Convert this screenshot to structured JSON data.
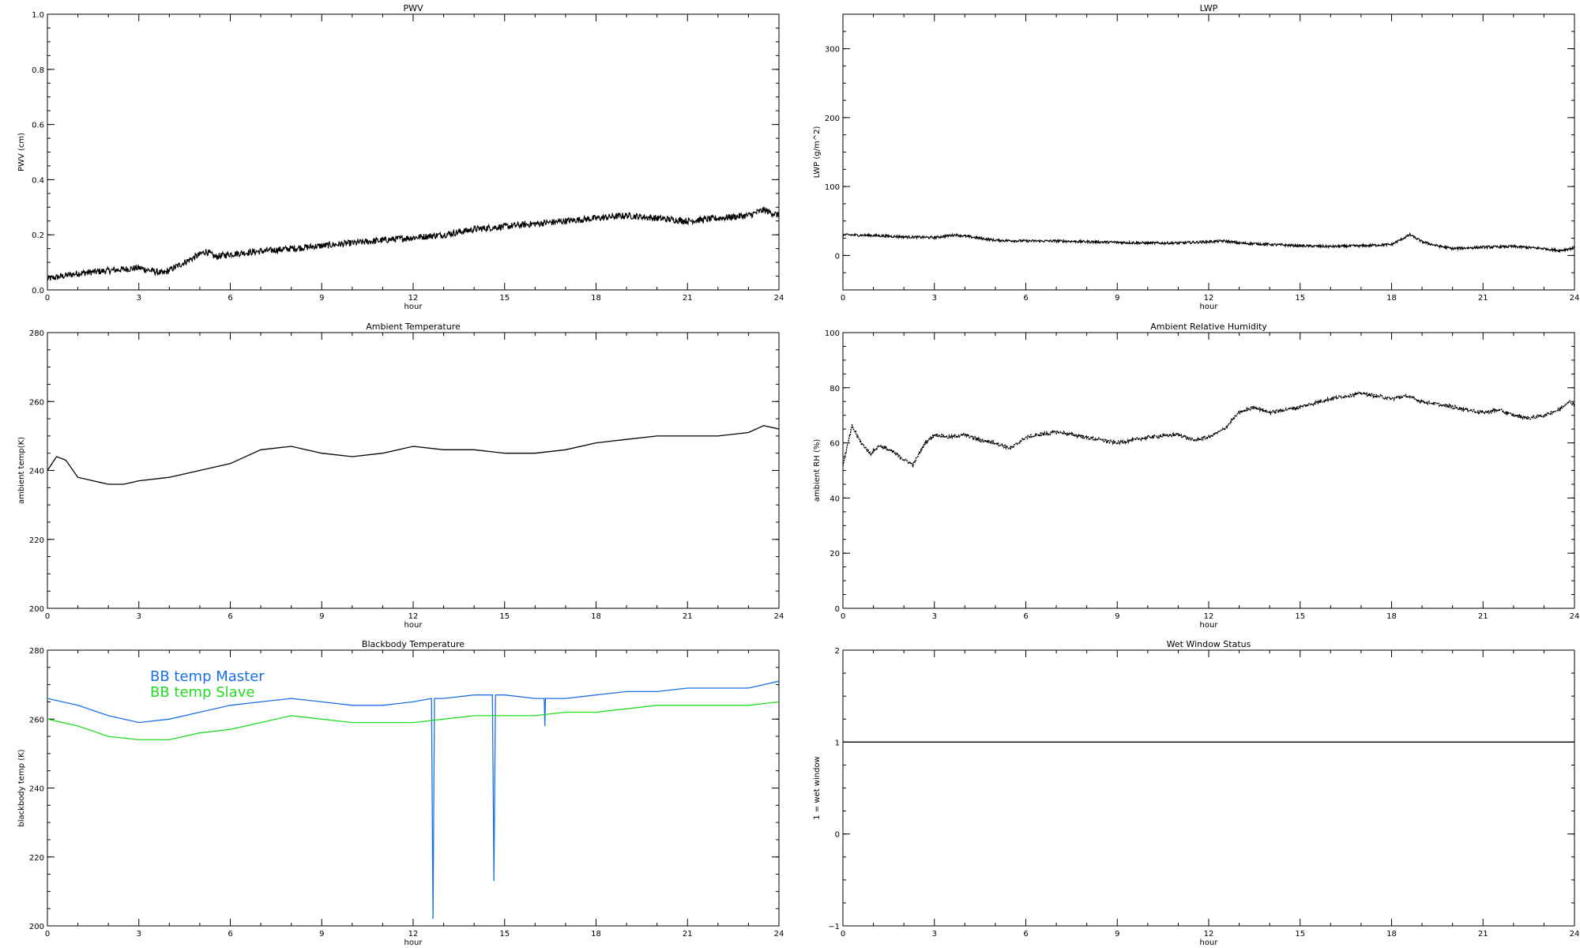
{
  "chart_data": [
    {
      "type": "line",
      "title": "PWV",
      "xlabel": "hour",
      "ylabel": "PWV (cm)",
      "xlim": [
        0,
        24
      ],
      "ylim": [
        0.0,
        1.0
      ],
      "xticks": [
        0,
        3,
        6,
        9,
        12,
        15,
        18,
        21,
        24
      ],
      "yticks": [
        0.0,
        0.2,
        0.4,
        0.6,
        0.8,
        1.0
      ],
      "ytick_labels": [
        "0.0",
        "0.2",
        "0.4",
        "0.6",
        "0.8",
        "1.0"
      ],
      "series": [
        {
          "color": "#000000",
          "noise": 0.012,
          "points": [
            [
              0,
              0.04
            ],
            [
              1,
              0.06
            ],
            [
              2,
              0.07
            ],
            [
              3,
              0.08
            ],
            [
              3.8,
              0.06
            ],
            [
              4.5,
              0.1
            ],
            [
              5.2,
              0.14
            ],
            [
              5.5,
              0.12
            ],
            [
              6,
              0.13
            ],
            [
              7,
              0.14
            ],
            [
              8,
              0.15
            ],
            [
              9,
              0.16
            ],
            [
              10,
              0.17
            ],
            [
              11,
              0.18
            ],
            [
              12,
              0.19
            ],
            [
              13,
              0.2
            ],
            [
              14,
              0.22
            ],
            [
              15,
              0.23
            ],
            [
              16,
              0.24
            ],
            [
              17,
              0.25
            ],
            [
              18,
              0.26
            ],
            [
              19,
              0.27
            ],
            [
              20,
              0.26
            ],
            [
              21,
              0.25
            ],
            [
              22,
              0.26
            ],
            [
              23,
              0.27
            ],
            [
              23.5,
              0.29
            ],
            [
              24,
              0.27
            ]
          ]
        }
      ]
    },
    {
      "type": "line",
      "title": "LWP",
      "xlabel": "hour",
      "ylabel": "LWP (g/m^2)",
      "xlim": [
        0,
        24
      ],
      "ylim": [
        -50,
        350
      ],
      "xticks": [
        0,
        3,
        6,
        9,
        12,
        15,
        18,
        21,
        24
      ],
      "yticks": [
        0,
        100,
        200,
        300
      ],
      "ytick_labels": [
        "0",
        "100",
        "200",
        "300"
      ],
      "series": [
        {
          "color": "#000000",
          "noise": 1.8,
          "points": [
            [
              0,
              30
            ],
            [
              1,
              29
            ],
            [
              2,
              27
            ],
            [
              3,
              26
            ],
            [
              3.7,
              30
            ],
            [
              4.5,
              25
            ],
            [
              5,
              22
            ],
            [
              6,
              21
            ],
            [
              7,
              21
            ],
            [
              8,
              20
            ],
            [
              9,
              19
            ],
            [
              10,
              18
            ],
            [
              11,
              18
            ],
            [
              12,
              20
            ],
            [
              12.5,
              21
            ],
            [
              13,
              18
            ],
            [
              14,
              16
            ],
            [
              15,
              14
            ],
            [
              16,
              13
            ],
            [
              17,
              14
            ],
            [
              18,
              16
            ],
            [
              18.6,
              30
            ],
            [
              19,
              20
            ],
            [
              19.5,
              14
            ],
            [
              20,
              10
            ],
            [
              21,
              12
            ],
            [
              22,
              13
            ],
            [
              23,
              10
            ],
            [
              23.5,
              7
            ],
            [
              24,
              11
            ]
          ]
        }
      ]
    },
    {
      "type": "line",
      "title": "Ambient Temperature",
      "xlabel": "hour",
      "ylabel": "ambient temp(K)",
      "xlim": [
        0,
        24
      ],
      "ylim": [
        200,
        280
      ],
      "xticks": [
        0,
        3,
        6,
        9,
        12,
        15,
        18,
        21,
        24
      ],
      "yticks": [
        200,
        220,
        240,
        260,
        280
      ],
      "ytick_labels": [
        "200",
        "220",
        "240",
        "260",
        "280"
      ],
      "series": [
        {
          "color": "#000000",
          "noise": 0,
          "points": [
            [
              0,
              240
            ],
            [
              0.3,
              244
            ],
            [
              0.6,
              243
            ],
            [
              1,
              238
            ],
            [
              1.5,
              237
            ],
            [
              2,
              236
            ],
            [
              2.5,
              236
            ],
            [
              3,
              237
            ],
            [
              4,
              238
            ],
            [
              5,
              240
            ],
            [
              6,
              242
            ],
            [
              7,
              246
            ],
            [
              8,
              247
            ],
            [
              9,
              245
            ],
            [
              10,
              244
            ],
            [
              11,
              245
            ],
            [
              12,
              247
            ],
            [
              13,
              246
            ],
            [
              14,
              246
            ],
            [
              15,
              245
            ],
            [
              16,
              245
            ],
            [
              17,
              246
            ],
            [
              18,
              248
            ],
            [
              19,
              249
            ],
            [
              20,
              250
            ],
            [
              21,
              250
            ],
            [
              22,
              250
            ],
            [
              23,
              251
            ],
            [
              23.5,
              253
            ],
            [
              24,
              252
            ]
          ]
        }
      ]
    },
    {
      "type": "scatter",
      "title": "Ambient Relative Humidity",
      "xlabel": "hour",
      "ylabel": "ambient RH (%)",
      "xlim": [
        0,
        24
      ],
      "ylim": [
        0,
        100
      ],
      "xticks": [
        0,
        3,
        6,
        9,
        12,
        15,
        18,
        21,
        24
      ],
      "yticks": [
        0,
        20,
        40,
        60,
        80,
        100
      ],
      "ytick_labels": [
        "0",
        "20",
        "40",
        "60",
        "80",
        "100"
      ],
      "series": [
        {
          "color": "#000000",
          "noise": 0.6,
          "points": [
            [
              0,
              52
            ],
            [
              0.3,
              66
            ],
            [
              0.6,
              60
            ],
            [
              0.9,
              56
            ],
            [
              1.2,
              59
            ],
            [
              1.6,
              57
            ],
            [
              2,
              54
            ],
            [
              2.3,
              52
            ],
            [
              2.7,
              60
            ],
            [
              3,
              63
            ],
            [
              3.5,
              62
            ],
            [
              4,
              63
            ],
            [
              4.5,
              61
            ],
            [
              5,
              60
            ],
            [
              5.5,
              58
            ],
            [
              6,
              62
            ],
            [
              7,
              64
            ],
            [
              8,
              62
            ],
            [
              9,
              60
            ],
            [
              10,
              62
            ],
            [
              11,
              63
            ],
            [
              11.5,
              61
            ],
            [
              12,
              62
            ],
            [
              12.5,
              65
            ],
            [
              13,
              71
            ],
            [
              13.5,
              73
            ],
            [
              14,
              71
            ],
            [
              15,
              73
            ],
            [
              16,
              76
            ],
            [
              17,
              78
            ],
            [
              18,
              76
            ],
            [
              18.5,
              77
            ],
            [
              19,
              75
            ],
            [
              20,
              73
            ],
            [
              21,
              71
            ],
            [
              21.5,
              72
            ],
            [
              22,
              70
            ],
            [
              22.5,
              69
            ],
            [
              23,
              70
            ],
            [
              23.5,
              72
            ],
            [
              23.8,
              75
            ],
            [
              24,
              74
            ]
          ]
        }
      ]
    },
    {
      "type": "line",
      "title": "Blackbody Temperature",
      "xlabel": "hour",
      "ylabel": "blackbody temp (K)",
      "xlim": [
        0,
        24
      ],
      "ylim": [
        200,
        280
      ],
      "xticks": [
        0,
        3,
        6,
        9,
        12,
        15,
        18,
        21,
        24
      ],
      "yticks": [
        200,
        220,
        240,
        260,
        280
      ],
      "ytick_labels": [
        "200",
        "220",
        "240",
        "260",
        "280"
      ],
      "series": [
        {
          "name": "BB temp Master",
          "color": "#1a6fe8",
          "noise": 0,
          "points": [
            [
              0,
              266
            ],
            [
              1,
              264
            ],
            [
              2,
              261
            ],
            [
              3,
              259
            ],
            [
              4,
              260
            ],
            [
              5,
              262
            ],
            [
              6,
              264
            ],
            [
              7,
              265
            ],
            [
              8,
              266
            ],
            [
              9,
              265
            ],
            [
              10,
              264
            ],
            [
              11,
              264
            ],
            [
              12,
              265
            ],
            [
              12.6,
              266
            ],
            [
              12.65,
              202
            ],
            [
              12.7,
              266
            ],
            [
              13,
              266
            ],
            [
              14,
              267
            ],
            [
              14.6,
              267
            ],
            [
              14.65,
              213
            ],
            [
              14.7,
              267
            ],
            [
              15,
              267
            ],
            [
              16,
              266
            ],
            [
              16.3,
              266
            ],
            [
              16.32,
              258
            ],
            [
              16.34,
              266
            ],
            [
              17,
              266
            ],
            [
              18,
              267
            ],
            [
              19,
              268
            ],
            [
              20,
              268
            ],
            [
              21,
              269
            ],
            [
              22,
              269
            ],
            [
              23,
              269
            ],
            [
              24,
              271
            ]
          ]
        },
        {
          "name": "BB temp Slave",
          "color": "#22dd22",
          "noise": 0,
          "points": [
            [
              0,
              260
            ],
            [
              1,
              258
            ],
            [
              2,
              255
            ],
            [
              3,
              254
            ],
            [
              4,
              254
            ],
            [
              5,
              256
            ],
            [
              6,
              257
            ],
            [
              7,
              259
            ],
            [
              8,
              261
            ],
            [
              9,
              260
            ],
            [
              10,
              259
            ],
            [
              11,
              259
            ],
            [
              12,
              259
            ],
            [
              13,
              260
            ],
            [
              14,
              261
            ],
            [
              15,
              261
            ],
            [
              16,
              261
            ],
            [
              17,
              262
            ],
            [
              18,
              262
            ],
            [
              19,
              263
            ],
            [
              20,
              264
            ],
            [
              21,
              264
            ],
            [
              22,
              264
            ],
            [
              23,
              264
            ],
            [
              24,
              265
            ]
          ]
        }
      ]
    },
    {
      "type": "line",
      "title": "Wet Window Status",
      "xlabel": "hour",
      "ylabel": "1 = wet window",
      "xlim": [
        0,
        24
      ],
      "ylim": [
        -1,
        2
      ],
      "xticks": [
        0,
        3,
        6,
        9,
        12,
        15,
        18,
        21,
        24
      ],
      "yticks": [
        -1,
        0,
        1,
        2
      ],
      "ytick_labels": [
        "−1",
        "0",
        "1",
        "2"
      ],
      "series": [
        {
          "color": "#000000",
          "noise": 0,
          "points": [
            [
              0,
              1
            ],
            [
              24,
              1
            ]
          ]
        }
      ]
    }
  ]
}
